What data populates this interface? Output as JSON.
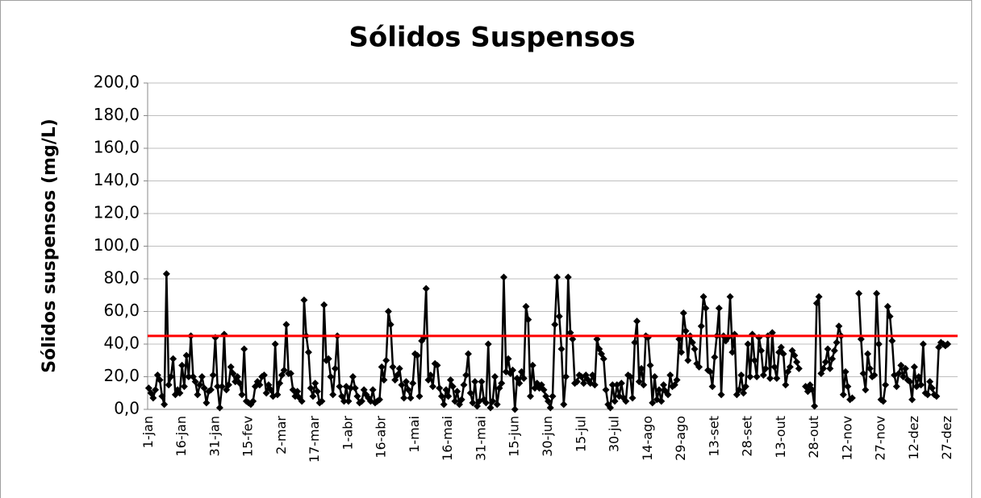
{
  "chart_data": {
    "type": "line",
    "title": "Sólidos Suspensos",
    "y_label": "Sólidos suspensos (mg/L)",
    "categories": [
      "1-jan",
      null,
      null,
      null,
      null,
      null,
      null,
      null,
      null,
      null,
      null,
      null,
      null,
      null,
      null,
      "16-jan",
      null,
      null,
      null,
      null,
      null,
      null,
      null,
      null,
      null,
      null,
      null,
      null,
      null,
      null,
      "31-jan",
      null,
      null,
      null,
      null,
      null,
      null,
      null,
      null,
      null,
      null,
      null,
      null,
      null,
      null,
      "15-fev",
      null,
      null,
      null,
      null,
      null,
      null,
      null,
      null,
      null,
      null,
      null,
      null,
      null,
      null,
      "2-mar",
      null,
      null,
      null,
      null,
      null,
      null,
      null,
      null,
      null,
      null,
      null,
      null,
      null,
      null,
      "17-mar",
      null,
      null,
      null,
      null,
      null,
      null,
      null,
      null,
      null,
      null,
      null,
      null,
      null,
      null,
      "1-abr",
      null,
      null,
      null,
      null,
      null,
      null,
      null,
      null,
      null,
      null,
      null,
      null,
      null,
      null,
      "16-abr",
      null,
      null,
      null,
      null,
      null,
      null,
      null,
      null,
      null,
      null,
      null,
      null,
      null,
      null,
      "1-mai",
      null,
      null,
      null,
      null,
      null,
      null,
      null,
      null,
      null,
      null,
      null,
      null,
      null,
      null,
      "16-mai",
      null,
      null,
      null,
      null,
      null,
      null,
      null,
      null,
      null,
      null,
      null,
      null,
      null,
      null,
      "31-mai",
      null,
      null,
      null,
      null,
      null,
      null,
      null,
      null,
      null,
      null,
      null,
      null,
      null,
      null,
      "15-jun",
      null,
      null,
      null,
      null,
      null,
      null,
      null,
      null,
      null,
      null,
      null,
      null,
      null,
      null,
      "30-jun",
      null,
      null,
      null,
      null,
      null,
      null,
      null,
      null,
      null,
      null,
      null,
      null,
      null,
      null,
      "15-jul",
      null,
      null,
      null,
      null,
      null,
      null,
      null,
      null,
      null,
      null,
      null,
      null,
      null,
      null,
      "30-jul",
      null,
      null,
      null,
      null,
      null,
      null,
      null,
      null,
      null,
      null,
      null,
      null,
      null,
      null,
      "14-ago",
      null,
      null,
      null,
      null,
      null,
      null,
      null,
      null,
      null,
      null,
      null,
      null,
      null,
      null,
      "29-ago",
      null,
      null,
      null,
      null,
      null,
      null,
      null,
      null,
      null,
      null,
      null,
      null,
      null,
      null,
      "13-set",
      null,
      null,
      null,
      null,
      null,
      null,
      null,
      null,
      null,
      null,
      null,
      null,
      null,
      null,
      "28-set",
      null,
      null,
      null,
      null,
      null,
      null,
      null,
      null,
      null,
      null,
      null,
      null,
      null,
      null,
      "13-out",
      null,
      null,
      null,
      null,
      null,
      null,
      null,
      null,
      null,
      null,
      null,
      null,
      null,
      null,
      "28-out",
      null,
      null,
      null,
      null,
      null,
      null,
      null,
      null,
      null,
      null,
      null,
      null,
      null,
      null,
      "12-nov",
      null,
      null,
      null,
      null,
      null,
      null,
      null,
      null,
      null,
      null,
      null,
      null,
      null,
      null,
      "27-nov",
      null,
      null,
      null,
      null,
      null,
      null,
      null,
      null,
      null,
      null,
      null,
      null,
      null,
      null,
      "12-dez",
      null,
      null,
      null,
      null,
      null,
      null,
      null,
      null,
      null,
      null,
      null,
      null,
      null,
      null,
      "27-dez",
      null,
      null,
      null,
      null
    ],
    "series": [
      {
        "color": "#000000",
        "values": [
          13,
          10,
          7,
          12,
          21,
          18,
          8,
          3,
          83,
          15,
          20,
          31,
          9,
          12,
          10,
          27,
          14,
          33,
          20,
          45,
          20,
          17,
          9,
          15,
          20,
          13,
          4,
          11,
          12,
          21,
          44,
          14,
          1,
          14,
          46,
          12,
          15,
          26,
          22,
          17,
          20,
          16,
          9,
          37,
          5,
          4,
          3,
          5,
          14,
          17,
          15,
          20,
          21,
          10,
          15,
          12,
          8,
          40,
          9,
          16,
          21,
          24,
          52,
          22,
          22,
          12,
          8,
          11,
          7,
          5,
          67,
          45,
          35,
          13,
          8,
          16,
          11,
          4,
          5,
          64,
          30,
          31,
          20,
          9,
          25,
          45,
          14,
          8,
          5,
          14,
          5,
          13,
          20,
          13,
          8,
          4,
          5,
          12,
          9,
          7,
          5,
          12,
          4,
          5,
          6,
          26,
          18,
          30,
          60,
          52,
          26,
          18,
          21,
          25,
          15,
          7,
          17,
          12,
          7,
          16,
          34,
          33,
          8,
          42,
          44,
          74,
          18,
          21,
          14,
          28,
          27,
          13,
          8,
          3,
          12,
          8,
          18,
          14,
          5,
          11,
          3,
          6,
          15,
          21,
          34,
          10,
          4,
          17,
          2,
          5,
          17,
          6,
          4,
          40,
          1,
          5,
          20,
          3,
          13,
          16,
          81,
          23,
          31,
          22,
          24,
          0,
          19,
          16,
          23,
          19,
          63,
          55,
          8,
          27,
          13,
          16,
          13,
          15,
          12,
          8,
          5,
          1,
          8,
          52,
          81,
          57,
          37,
          3,
          20,
          81,
          47,
          43,
          16,
          17,
          21,
          20,
          16,
          21,
          18,
          16,
          21,
          15,
          43,
          37,
          34,
          31,
          12,
          3,
          1,
          15,
          5,
          15,
          8,
          16,
          7,
          5,
          21,
          20,
          7,
          41,
          54,
          17,
          25,
          15,
          45,
          44,
          27,
          4,
          20,
          6,
          12,
          5,
          15,
          11,
          9,
          21,
          14,
          15,
          18,
          43,
          35,
          59,
          48,
          30,
          45,
          41,
          37,
          28,
          26,
          51,
          69,
          62,
          24,
          23,
          14,
          32,
          45,
          62,
          9,
          45,
          42,
          44,
          69,
          35,
          46,
          9,
          12,
          21,
          10,
          14,
          40,
          20,
          46,
          30,
          20,
          44,
          36,
          21,
          25,
          45,
          19,
          47,
          26,
          19,
          35,
          38,
          34,
          15,
          23,
          26,
          36,
          33,
          29,
          25,
          null,
          null,
          14,
          11,
          15,
          12,
          2,
          65,
          69,
          22,
          25,
          29,
          37,
          25,
          31,
          36,
          41,
          51,
          45,
          9,
          23,
          14,
          6,
          7,
          null,
          null,
          71,
          43,
          22,
          12,
          34,
          25,
          20,
          21,
          71,
          40,
          6,
          5,
          15,
          63,
          57,
          42,
          21,
          14,
          22,
          27,
          20,
          25,
          18,
          17,
          6,
          26,
          14,
          20,
          15,
          40,
          10,
          9,
          17,
          13,
          9,
          8,
          38,
          41,
          40,
          39,
          40,
          null,
          null,
          null,
          null
        ]
      }
    ],
    "hline": {
      "value": 45,
      "color": "#ff0000"
    },
    "ylim": [
      0,
      200
    ],
    "yticks": [
      {
        "value": 0,
        "label": "0,0"
      },
      {
        "value": 20,
        "label": "20,0"
      },
      {
        "value": 40,
        "label": "40,0"
      },
      {
        "value": 60,
        "label": "60,0"
      },
      {
        "value": 80,
        "label": "80,0"
      },
      {
        "value": 100,
        "label": "100,0"
      },
      {
        "value": 120,
        "label": "120,0"
      },
      {
        "value": 140,
        "label": "140,0"
      },
      {
        "value": 160,
        "label": "160,0"
      },
      {
        "value": 180,
        "label": "180,0"
      },
      {
        "value": 200,
        "label": "200,0"
      }
    ],
    "grid": true
  }
}
